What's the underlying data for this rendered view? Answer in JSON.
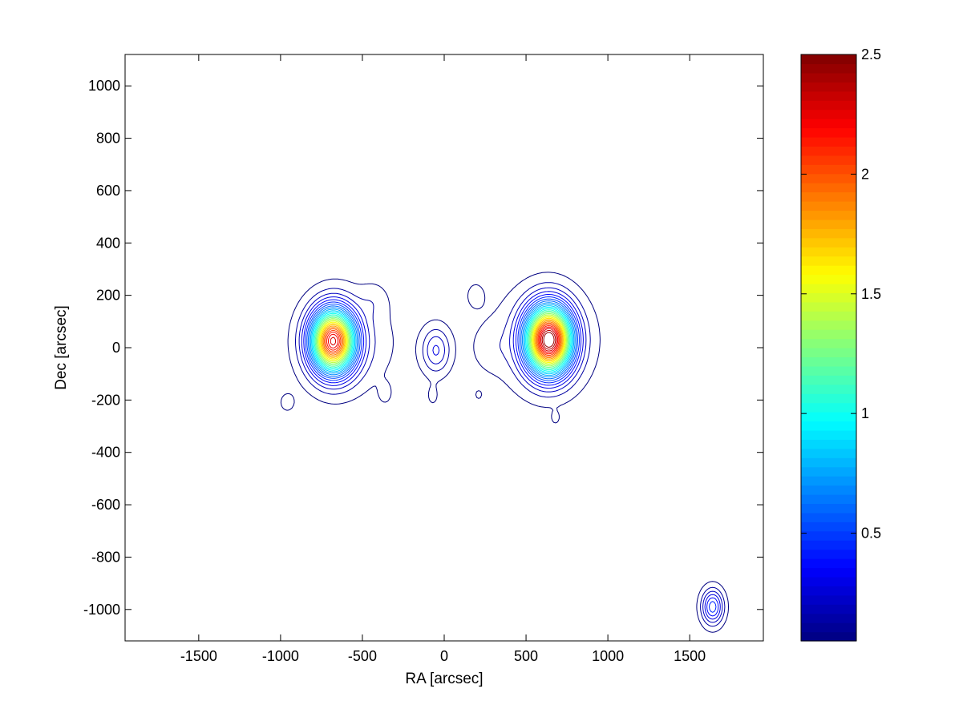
{
  "chart_data": {
    "type": "contour",
    "xlabel": "RA [arcsec]",
    "ylabel": "Dec [arcsec]",
    "xlim": [
      -1950,
      1950
    ],
    "ylim": [
      -1120,
      1120
    ],
    "xticks": [
      -1500,
      -1000,
      -500,
      0,
      500,
      1000,
      1500
    ],
    "xtick_labels": [
      "-1500",
      "-1000",
      "-500",
      "0",
      "500",
      "1000",
      "1500"
    ],
    "yticks": [
      -1000,
      -800,
      -600,
      -400,
      -200,
      0,
      200,
      400,
      600,
      800,
      1000
    ],
    "ytick_labels": [
      "-1000",
      "-800",
      "-600",
      "-400",
      "-200",
      "0",
      "200",
      "400",
      "600",
      "800",
      "1000"
    ],
    "colormap": "jet",
    "colorbar": {
      "range": [
        0.05,
        2.5
      ],
      "ticks": [
        0.5,
        1,
        1.5,
        2,
        2.5
      ],
      "tick_labels": [
        "0.5",
        "1",
        "1.5",
        "2",
        "2.5"
      ]
    },
    "contour_levels": [
      0.05,
      0.13,
      0.21,
      0.29,
      0.37,
      0.45,
      0.53,
      0.61,
      0.69,
      0.77,
      0.85,
      0.93,
      1.01,
      1.09,
      1.17,
      1.25,
      1.33,
      1.41,
      1.49,
      1.57,
      1.65,
      1.73,
      1.81,
      1.89,
      1.97,
      2.05,
      2.13,
      2.21,
      2.29,
      2.37,
      2.45
    ],
    "sources": [
      {
        "id": "west-lobe",
        "ra": -680,
        "dec": 25,
        "peak": 2.2,
        "sigma_ra": 90,
        "sigma_dec": 80
      },
      {
        "id": "west-lobe-halo",
        "ra": -600,
        "dec": 20,
        "peak": 0.14,
        "sigma_ra": 200,
        "sigma_dec": 130
      },
      {
        "id": "west-plume",
        "ra": -430,
        "dec": 180,
        "peak": 0.07,
        "sigma_ra": 60,
        "sigma_dec": 45
      },
      {
        "id": "core",
        "ra": -50,
        "dec": -10,
        "peak": 0.3,
        "sigma_ra": 60,
        "sigma_dec": 60
      },
      {
        "id": "east-lobe",
        "ra": 640,
        "dec": 30,
        "peak": 2.45,
        "sigma_ra": 95,
        "sigma_dec": 85
      },
      {
        "id": "east-lobe-halo",
        "ra": 600,
        "dec": 30,
        "peak": 0.14,
        "sigma_ra": 220,
        "sigma_dec": 140
      },
      {
        "id": "east-bridge",
        "ra": 280,
        "dec": 0,
        "peak": 0.06,
        "sigma_ra": 80,
        "sigma_dec": 60
      },
      {
        "id": "north-blob",
        "ra": 190,
        "dec": 200,
        "peak": 0.07,
        "sigma_ra": 45,
        "sigma_dec": 40
      },
      {
        "id": "blob-sw",
        "ra": -960,
        "dec": -210,
        "peak": 0.065,
        "sigma_ra": 45,
        "sigma_dec": 35
      },
      {
        "id": "blob-s1",
        "ra": -360,
        "dec": -175,
        "peak": 0.065,
        "sigma_ra": 30,
        "sigma_dec": 30
      },
      {
        "id": "blob-s2",
        "ra": -70,
        "dec": -185,
        "peak": 0.065,
        "sigma_ra": 30,
        "sigma_dec": 32
      },
      {
        "id": "blob-s3",
        "ra": 210,
        "dec": -180,
        "peak": 0.056,
        "sigma_ra": 22,
        "sigma_dec": 18
      },
      {
        "id": "blob-s4",
        "ra": 680,
        "dec": -270,
        "peak": 0.056,
        "sigma_ra": 22,
        "sigma_dec": 20
      },
      {
        "id": "point-source-se",
        "ra": 1640,
        "dec": -990,
        "peak": 0.5,
        "sigma_ra": 45,
        "sigma_dec": 45
      }
    ]
  }
}
